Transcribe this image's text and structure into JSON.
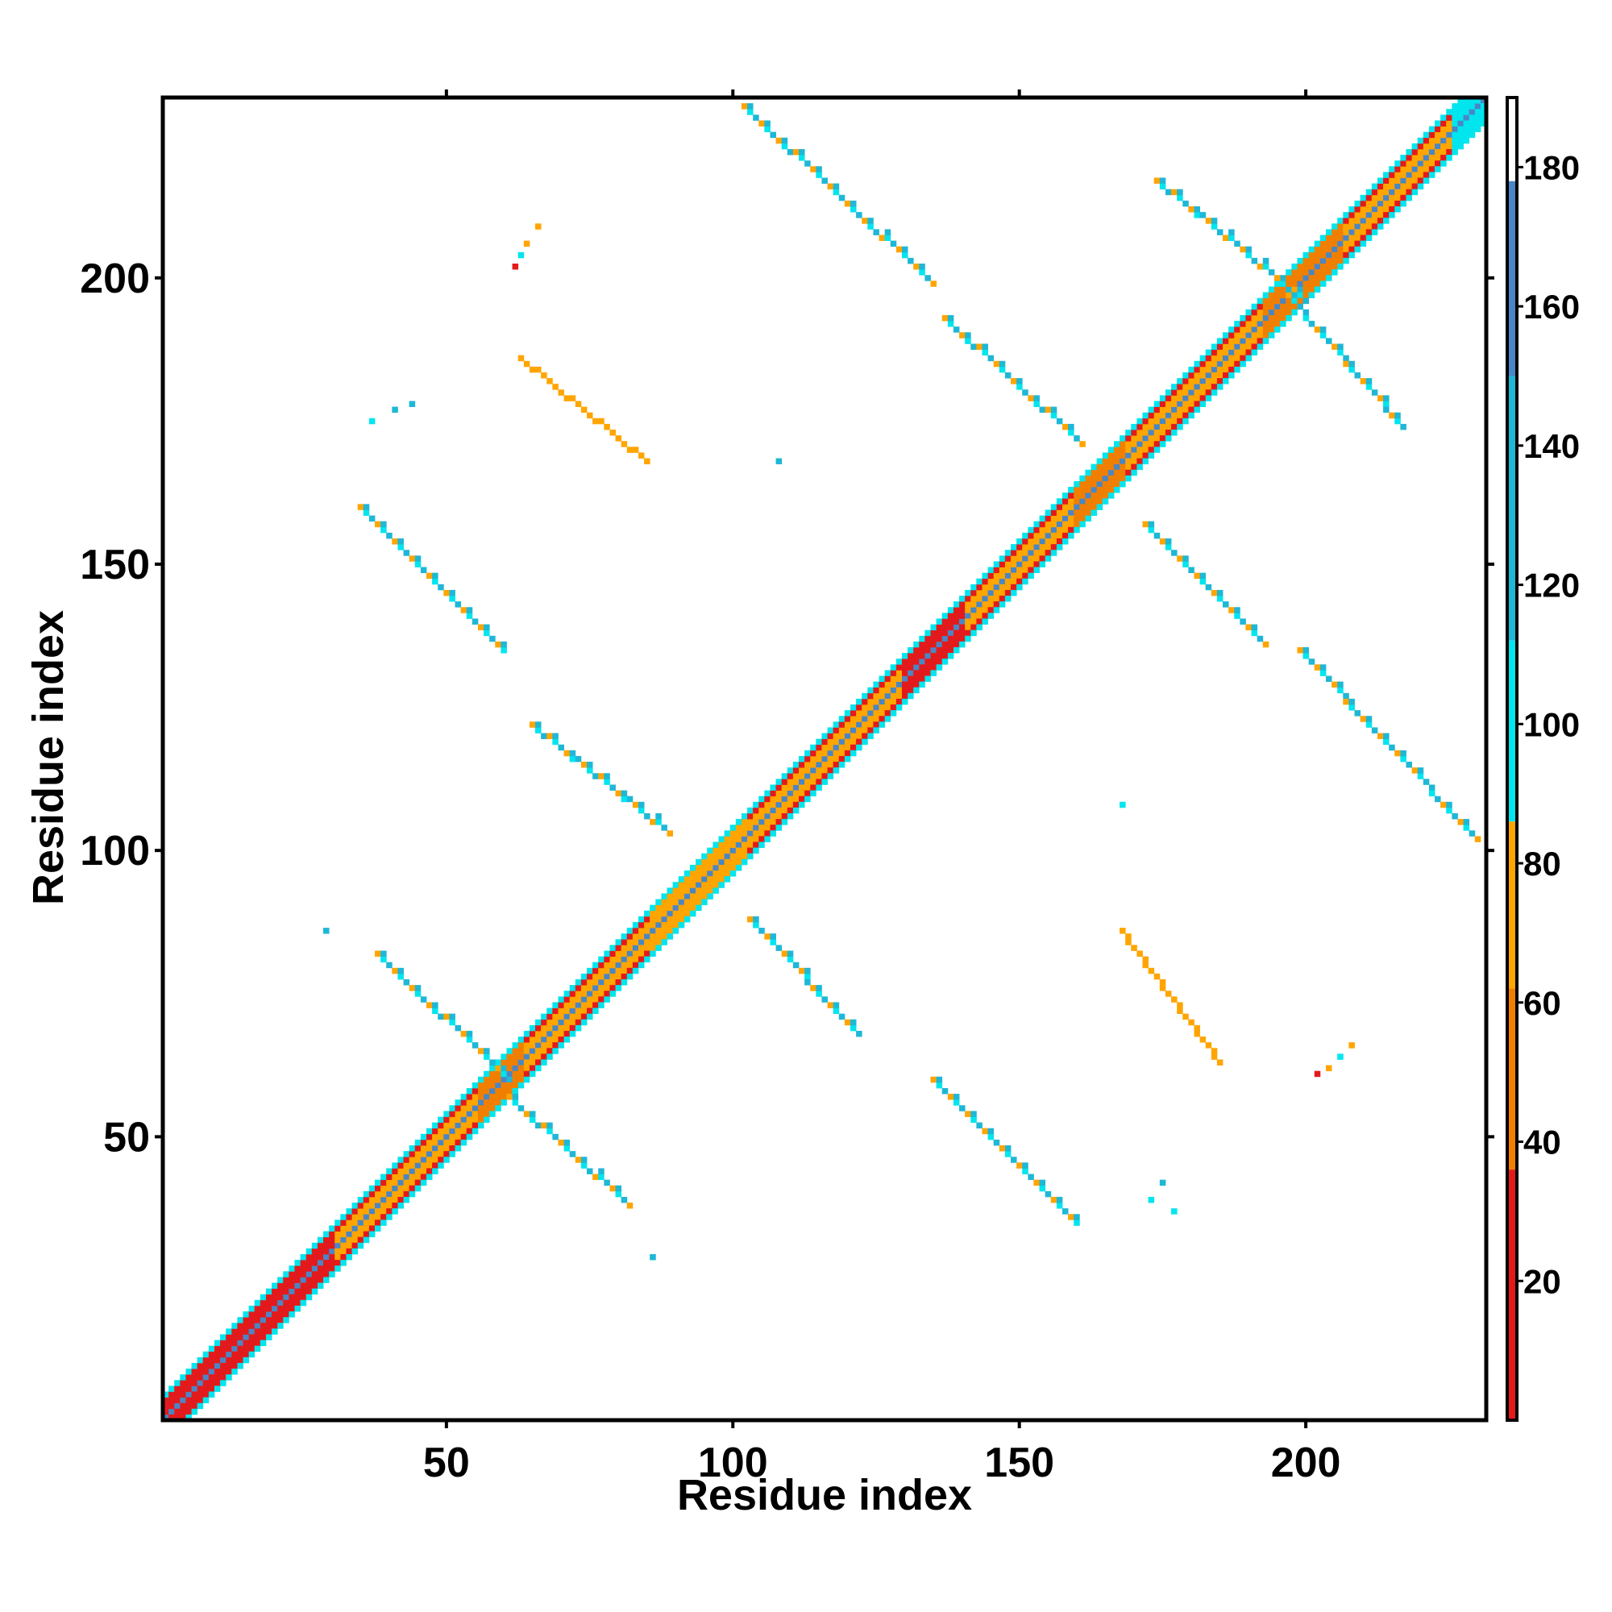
{
  "chart_data": {
    "type": "heatmap",
    "title": "",
    "xlabel": "Residue index",
    "ylabel": "Residue index",
    "xlim": [
      1,
      231
    ],
    "ylim": [
      1,
      231
    ],
    "x_ticks": [
      50,
      100,
      150,
      200
    ],
    "y_ticks": [
      50,
      100,
      150,
      200
    ],
    "colorbar": {
      "range": [
        0,
        190
      ],
      "ticks": [
        20,
        40,
        60,
        80,
        100,
        120,
        140,
        160,
        180
      ],
      "segments": [
        {
          "from": 0,
          "to": 36,
          "color": "#e31a1c"
        },
        {
          "from": 36,
          "to": 62,
          "color": "#f07f00"
        },
        {
          "from": 62,
          "to": 86,
          "color": "#ffa500"
        },
        {
          "from": 86,
          "to": 112,
          "color": "#00e5ee"
        },
        {
          "from": 112,
          "to": 150,
          "color": "#1fb7d6"
        },
        {
          "from": 150,
          "to": 178,
          "color": "#4a86c5"
        },
        {
          "from": 178,
          "to": 190,
          "color": "#ffffff"
        }
      ]
    },
    "diagonal_band": {
      "from": 1,
      "to": 231,
      "profile_by_offset": [
        {
          "offset": 0,
          "value": 175
        },
        {
          "offset": 1,
          "value": 70
        },
        {
          "offset": 2,
          "value": 75
        },
        {
          "offset": 3,
          "value": 20
        },
        {
          "offset": 4,
          "value": 100
        }
      ],
      "turn_regions": [
        {
          "from": 1,
          "to": 30,
          "value": 25
        },
        {
          "from": 56,
          "to": 63,
          "value": 55
        },
        {
          "from": 86,
          "to": 102,
          "value": 70
        },
        {
          "from": 130,
          "to": 140,
          "value": 35
        },
        {
          "from": 160,
          "to": 168,
          "value": 55
        },
        {
          "from": 193,
          "to": 206,
          "value": 45
        },
        {
          "from": 226,
          "to": 231,
          "value": 90
        }
      ]
    },
    "contact_segments": [
      {
        "i0": 38,
        "j0": 82,
        "i1": 61,
        "j1": 60,
        "values": [
          72,
          105,
          130
        ]
      },
      {
        "i0": 61,
        "j0": 57,
        "i1": 82,
        "j1": 38,
        "values": [
          72,
          105,
          130
        ]
      },
      {
        "i0": 65,
        "j0": 122,
        "i1": 89,
        "j1": 103,
        "values": [
          72,
          105,
          130
        ]
      },
      {
        "i0": 103,
        "j0": 88,
        "i1": 122,
        "j1": 68,
        "values": [
          72,
          105,
          130
        ]
      },
      {
        "i0": 35,
        "j0": 160,
        "i1": 60,
        "j1": 135,
        "values": [
          72,
          105,
          130
        ]
      },
      {
        "i0": 135,
        "j0": 60,
        "i1": 160,
        "j1": 35,
        "values": [
          72,
          105,
          130
        ]
      },
      {
        "i0": 102,
        "j0": 230,
        "i1": 135,
        "j1": 199,
        "values": [
          72,
          105,
          130
        ]
      },
      {
        "i0": 199,
        "j0": 135,
        "i1": 230,
        "j1": 102,
        "values": [
          72,
          105,
          130
        ]
      },
      {
        "i0": 137,
        "j0": 193,
        "i1": 161,
        "j1": 171,
        "values": [
          72,
          105,
          130
        ]
      },
      {
        "i0": 172,
        "j0": 157,
        "i1": 193,
        "j1": 136,
        "values": [
          72,
          105,
          130
        ]
      },
      {
        "i0": 174,
        "j0": 217,
        "i1": 200,
        "j1": 196,
        "values": [
          72,
          105,
          130
        ]
      },
      {
        "i0": 197,
        "j0": 197,
        "i1": 217,
        "j1": 174,
        "values": [
          72,
          105,
          130
        ]
      },
      {
        "i0": 63,
        "j0": 186,
        "i1": 85,
        "j1": 168,
        "values": [
          72
        ]
      },
      {
        "i0": 168,
        "j0": 86,
        "i1": 185,
        "j1": 63,
        "values": [
          72
        ]
      }
    ],
    "contact_points": [
      {
        "i": 62,
        "j": 202,
        "v": 25
      },
      {
        "i": 63,
        "j": 204,
        "v": 105
      },
      {
        "i": 64,
        "j": 206,
        "v": 72
      },
      {
        "i": 66,
        "j": 209,
        "v": 72
      },
      {
        "i": 202,
        "j": 61,
        "v": 25
      },
      {
        "i": 204,
        "j": 62,
        "v": 72
      },
      {
        "i": 206,
        "j": 64,
        "v": 105
      },
      {
        "i": 208,
        "j": 66,
        "v": 72
      },
      {
        "i": 37,
        "j": 175,
        "v": 105
      },
      {
        "i": 41,
        "j": 177,
        "v": 130
      },
      {
        "i": 44,
        "j": 178,
        "v": 130
      },
      {
        "i": 177,
        "j": 37,
        "v": 105
      },
      {
        "i": 173,
        "j": 39,
        "v": 105
      },
      {
        "i": 175,
        "j": 42,
        "v": 130
      },
      {
        "i": 108,
        "j": 168,
        "v": 130
      },
      {
        "i": 168,
        "j": 108,
        "v": 105
      },
      {
        "i": 29,
        "j": 86,
        "v": 130
      },
      {
        "i": 86,
        "j": 29,
        "v": 130
      }
    ]
  }
}
